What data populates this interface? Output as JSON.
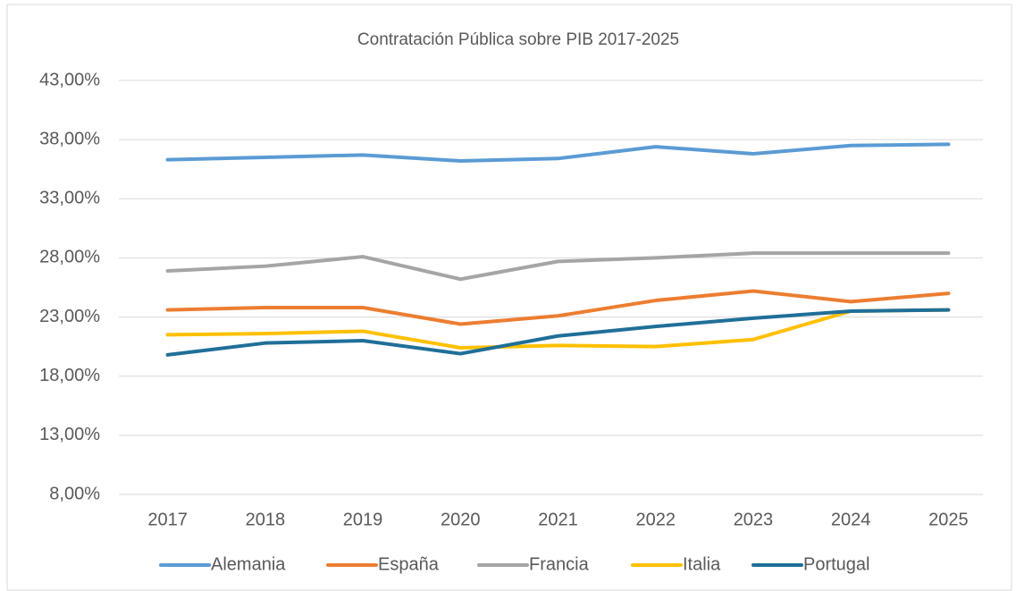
{
  "chart_data": {
    "type": "line",
    "title": "Contratación Pública sobre PIB 2017-2025",
    "categories": [
      "2017",
      "2018",
      "2019",
      "2020",
      "2021",
      "2022",
      "2023",
      "2024",
      "2025"
    ],
    "series": [
      {
        "name": "Alemania",
        "color": "#5b9bd5",
        "values": [
          36.3,
          36.5,
          36.7,
          36.2,
          36.4,
          37.4,
          36.8,
          37.5,
          37.6
        ]
      },
      {
        "name": "España",
        "color": "#ed7d31",
        "values": [
          23.6,
          23.8,
          23.8,
          22.4,
          23.1,
          24.4,
          25.2,
          24.3,
          25.0
        ]
      },
      {
        "name": "Francia",
        "color": "#a5a5a5",
        "values": [
          26.9,
          27.3,
          28.1,
          26.2,
          27.7,
          28.0,
          28.4,
          28.4,
          28.4
        ]
      },
      {
        "name": "Italia",
        "color": "#ffc000",
        "values": [
          21.5,
          21.6,
          21.8,
          20.4,
          20.6,
          20.5,
          21.1,
          23.5,
          23.6
        ]
      },
      {
        "name": "Portugal",
        "color": "#1f6f98",
        "values": [
          19.8,
          20.8,
          21.0,
          19.9,
          21.4,
          22.2,
          22.9,
          23.5,
          23.6
        ]
      }
    ],
    "ylim": [
      8,
      43
    ],
    "yticks": [
      {
        "value": 8,
        "label": "8,00%"
      },
      {
        "value": 13,
        "label": "13,00%"
      },
      {
        "value": 18,
        "label": "18,00%"
      },
      {
        "value": 23,
        "label": "23,00%"
      },
      {
        "value": 28,
        "label": "28,00%"
      },
      {
        "value": 33,
        "label": "33,00%"
      },
      {
        "value": 38,
        "label": "38,00%"
      },
      {
        "value": 43,
        "label": "43,00%"
      }
    ],
    "grid": true,
    "legend": "bottom"
  }
}
